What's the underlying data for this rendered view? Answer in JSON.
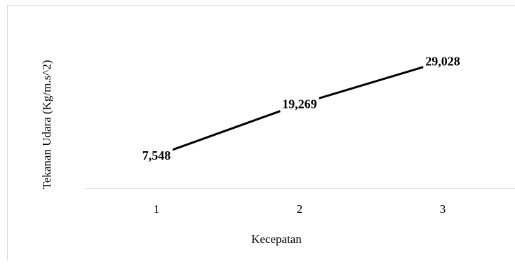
{
  "chart_data": {
    "type": "line",
    "categories": [
      "1",
      "2",
      "3"
    ],
    "series": [
      {
        "values": [
          7.548,
          19.269,
          29.028
        ]
      }
    ],
    "data_labels": [
      "7,548",
      "19,269",
      "29,028"
    ],
    "xlabel": "Kecepatan",
    "ylabel": "Tekanan Udara (Kg/m.s^2)",
    "ylim": [
      0,
      35
    ],
    "grid": false,
    "line_color": "#000000",
    "axis_color": "#d9d9d9",
    "frame_color": "#d9d9d9"
  }
}
